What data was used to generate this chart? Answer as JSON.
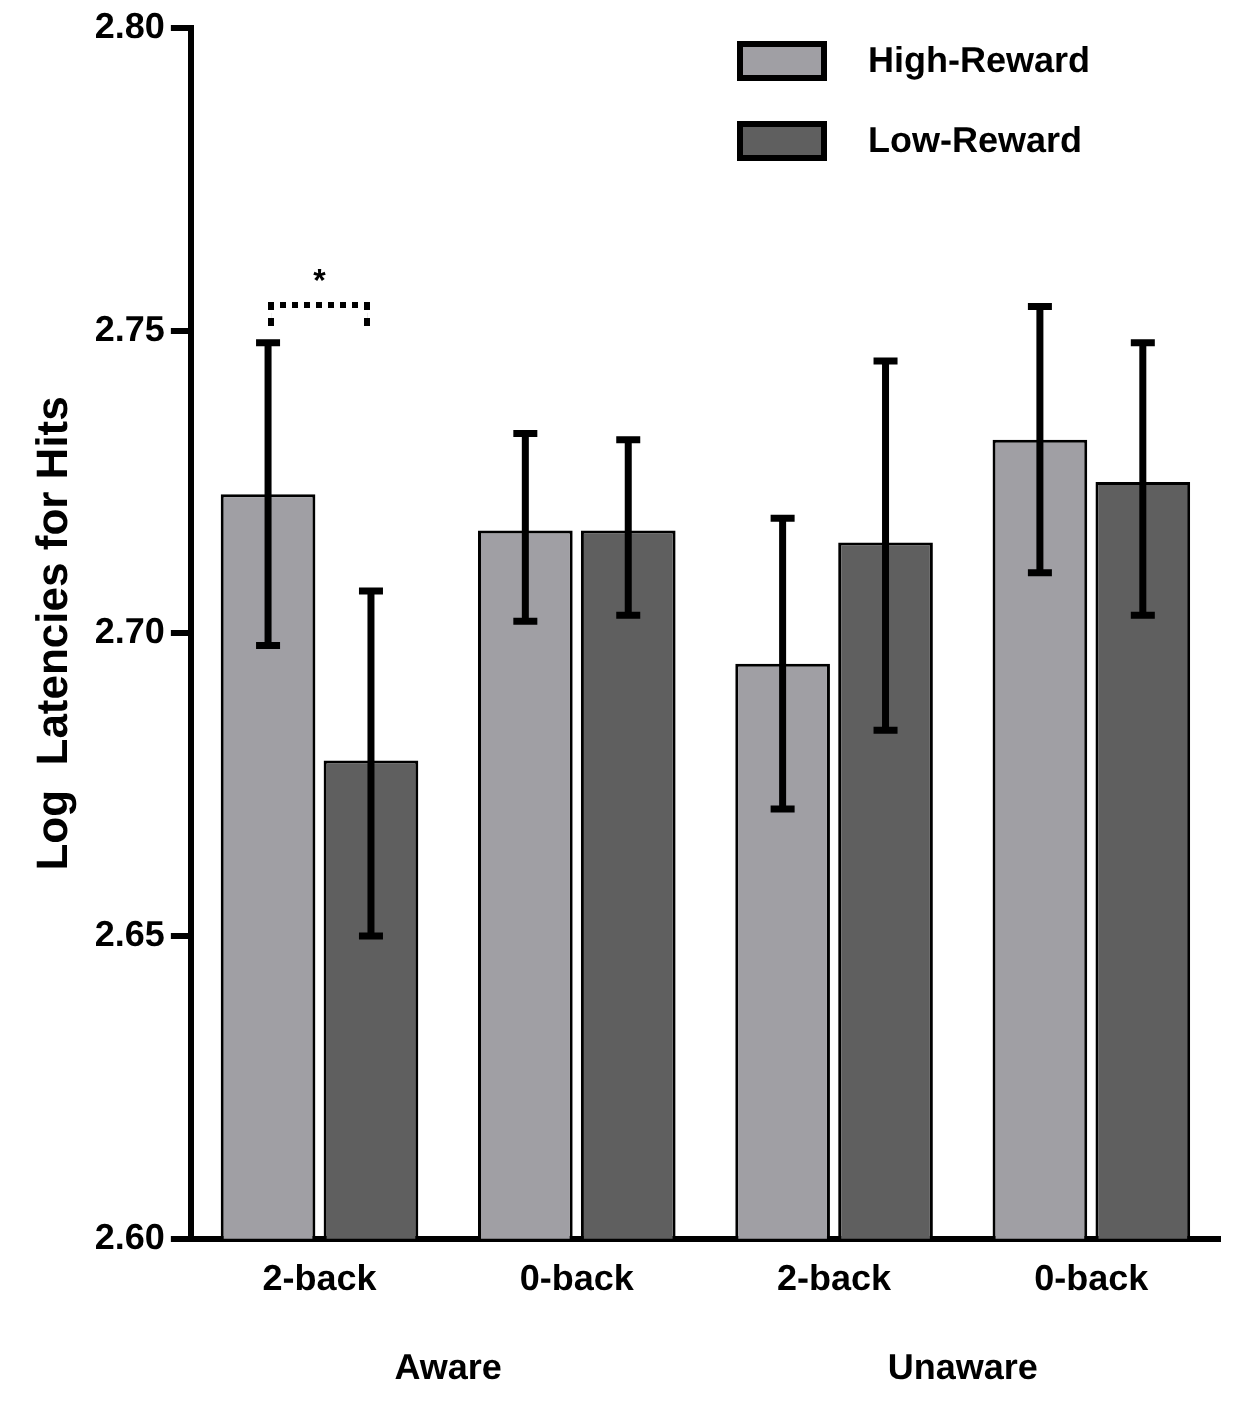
{
  "chart_data": {
    "type": "bar",
    "ylabel": "Log  Latencies for Hits",
    "categories": [
      "2-back",
      "0-back",
      "2-back",
      "0-back"
    ],
    "series": [
      {
        "name": "High-Reward",
        "color": "#a09fa4",
        "values": [
          2.723,
          2.717,
          2.695,
          2.732
        ],
        "errors": [
          [
            2.698,
            2.748
          ],
          [
            2.702,
            2.733
          ],
          [
            2.671,
            2.719
          ],
          [
            2.71,
            2.754
          ]
        ]
      },
      {
        "name": "Low-Reward",
        "color": "#5f5f5f",
        "values": [
          2.679,
          2.717,
          2.715,
          2.725
        ],
        "errors": [
          [
            2.65,
            2.707
          ],
          [
            2.703,
            2.732
          ],
          [
            2.684,
            2.745
          ],
          [
            2.703,
            2.748
          ]
        ]
      }
    ],
    "ylim": [
      2.6,
      2.8
    ],
    "yticks": [
      {
        "value": 2.6,
        "label": "2.60"
      },
      {
        "value": 2.65,
        "label": "2.65"
      },
      {
        "value": 2.7,
        "label": "2.70"
      },
      {
        "value": 2.75,
        "label": "2.75"
      },
      {
        "value": 2.8,
        "label": "2.80"
      }
    ],
    "annotations": [
      "*",
      "Aware",
      "Unaware"
    ],
    "grid": false,
    "legend": "top right"
  }
}
